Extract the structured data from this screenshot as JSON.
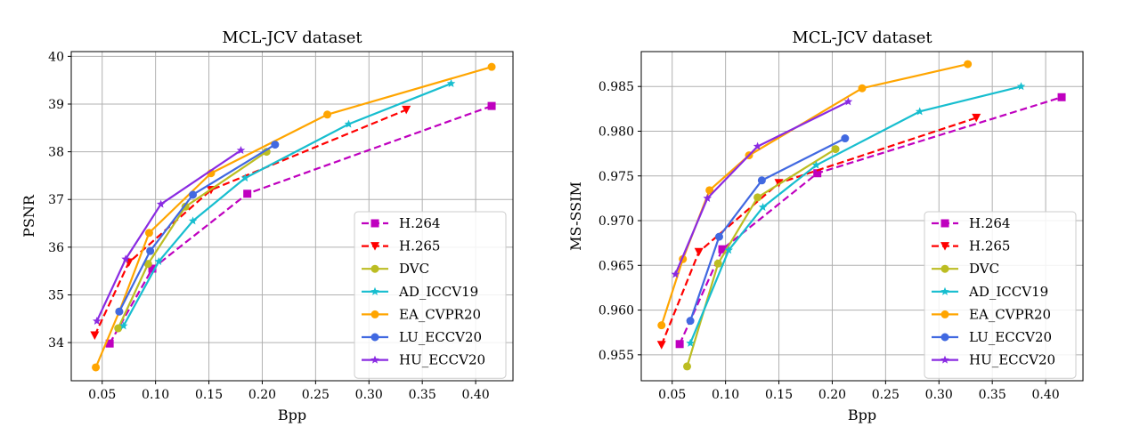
{
  "chart_data": [
    {
      "type": "line",
      "title": "MCL-JCV dataset",
      "xlabel": "Bpp",
      "ylabel": "PSNR",
      "xlim": [
        0.021,
        0.435
      ],
      "ylim": [
        33.2,
        40.1
      ],
      "xticks": [
        0.05,
        0.1,
        0.15,
        0.2,
        0.25,
        0.3,
        0.35,
        0.4
      ],
      "xtick_labels": [
        "0.05",
        "0.10",
        "0.15",
        "0.20",
        "0.25",
        "0.30",
        "0.35",
        "0.40"
      ],
      "yticks": [
        34,
        35,
        36,
        37,
        38,
        39,
        40
      ],
      "ytick_labels": [
        "34",
        "35",
        "36",
        "37",
        "38",
        "39",
        "40"
      ],
      "grid": true,
      "legend_position": "bottom-right",
      "series": [
        {
          "name": "H.264",
          "color": "#bf00bf",
          "dash": "dashed",
          "marker": "square",
          "x": [
            0.057,
            0.097,
            0.186,
            0.415
          ],
          "y": [
            33.98,
            35.55,
            37.12,
            38.96
          ]
        },
        {
          "name": "H.265",
          "color": "#ff0000",
          "dash": "dashed",
          "marker": "triangle-down",
          "x": [
            0.043,
            0.075,
            0.152,
            0.335
          ],
          "y": [
            34.15,
            35.68,
            37.2,
            38.88
          ]
        },
        {
          "name": "DVC",
          "color": "#bcbd22",
          "dash": "solid",
          "marker": "circle",
          "x": [
            0.065,
            0.093,
            0.128,
            0.204
          ],
          "y": [
            34.3,
            35.65,
            36.85,
            38.0
          ]
        },
        {
          "name": "AD_ICCV19",
          "color": "#17becf",
          "dash": "solid",
          "marker": "star",
          "x": [
            0.07,
            0.103,
            0.135,
            0.184,
            0.281,
            0.377
          ],
          "y": [
            34.35,
            35.7,
            36.55,
            37.45,
            38.58,
            39.43
          ]
        },
        {
          "name": "EA_CVPR20",
          "color": "#ffa500",
          "dash": "solid",
          "marker": "circle",
          "x": [
            0.044,
            0.066,
            0.094,
            0.152,
            0.261,
            0.415
          ],
          "y": [
            33.48,
            34.65,
            36.3,
            37.55,
            38.78,
            39.78
          ]
        },
        {
          "name": "LU_ECCV20",
          "color": "#4169e1",
          "dash": "solid",
          "marker": "circle",
          "x": [
            0.066,
            0.095,
            0.135,
            0.212
          ],
          "y": [
            34.65,
            35.92,
            37.1,
            38.15
          ]
        },
        {
          "name": "HU_ECCV20",
          "color": "#8a2be2",
          "dash": "solid",
          "marker": "star",
          "x": [
            0.045,
            0.072,
            0.105,
            0.18
          ],
          "y": [
            34.45,
            35.75,
            36.9,
            38.03
          ]
        }
      ]
    },
    {
      "type": "line",
      "title": "MCL-JCV dataset",
      "xlabel": "Bpp",
      "ylabel": "MS-SSIM",
      "xlim": [
        0.021,
        0.435
      ],
      "ylim": [
        0.9521,
        0.9889
      ],
      "xticks": [
        0.05,
        0.1,
        0.15,
        0.2,
        0.25,
        0.3,
        0.35,
        0.4
      ],
      "xtick_labels": [
        "0.05",
        "0.10",
        "0.15",
        "0.20",
        "0.25",
        "0.30",
        "0.35",
        "0.40"
      ],
      "yticks": [
        0.955,
        0.96,
        0.965,
        0.97,
        0.975,
        0.98,
        0.985
      ],
      "ytick_labels": [
        "0.955",
        "0.960",
        "0.965",
        "0.970",
        "0.975",
        "0.980",
        "0.985"
      ],
      "grid": true,
      "legend_position": "bottom-right",
      "series": [
        {
          "name": "H.264",
          "color": "#bf00bf",
          "dash": "dashed",
          "marker": "square",
          "x": [
            0.057,
            0.097,
            0.186,
            0.415
          ],
          "y": [
            0.9562,
            0.9668,
            0.9753,
            0.9838
          ]
        },
        {
          "name": "H.265",
          "color": "#ff0000",
          "dash": "dashed",
          "marker": "triangle-down",
          "x": [
            0.04,
            0.075,
            0.15,
            0.335
          ],
          "y": [
            0.9561,
            0.9665,
            0.9742,
            0.9815
          ]
        },
        {
          "name": "DVC",
          "color": "#bcbd22",
          "dash": "solid",
          "marker": "circle",
          "x": [
            0.064,
            0.093,
            0.13,
            0.203
          ],
          "y": [
            0.9537,
            0.9652,
            0.9726,
            0.978
          ]
        },
        {
          "name": "AD_ICCV19",
          "color": "#17becf",
          "dash": "solid",
          "marker": "star",
          "x": [
            0.067,
            0.103,
            0.135,
            0.185,
            0.282,
            0.377
          ],
          "y": [
            0.9563,
            0.9667,
            0.9715,
            0.9762,
            0.9822,
            0.985
          ]
        },
        {
          "name": "EA_CVPR20",
          "color": "#ffa500",
          "dash": "solid",
          "marker": "circle",
          "x": [
            0.04,
            0.06,
            0.085,
            0.122,
            0.228,
            0.327
          ],
          "y": [
            0.9583,
            0.9657,
            0.9734,
            0.9773,
            0.9848,
            0.9875
          ]
        },
        {
          "name": "LU_ECCV20",
          "color": "#4169e1",
          "dash": "solid",
          "marker": "circle",
          "x": [
            0.067,
            0.094,
            0.134,
            0.212
          ],
          "y": [
            0.9588,
            0.9682,
            0.9745,
            0.9792
          ]
        },
        {
          "name": "HU_ECCV20",
          "color": "#8a2be2",
          "dash": "solid",
          "marker": "star",
          "x": [
            0.053,
            0.083,
            0.13,
            0.215
          ],
          "y": [
            0.964,
            0.9725,
            0.9783,
            0.9833
          ]
        }
      ]
    }
  ]
}
